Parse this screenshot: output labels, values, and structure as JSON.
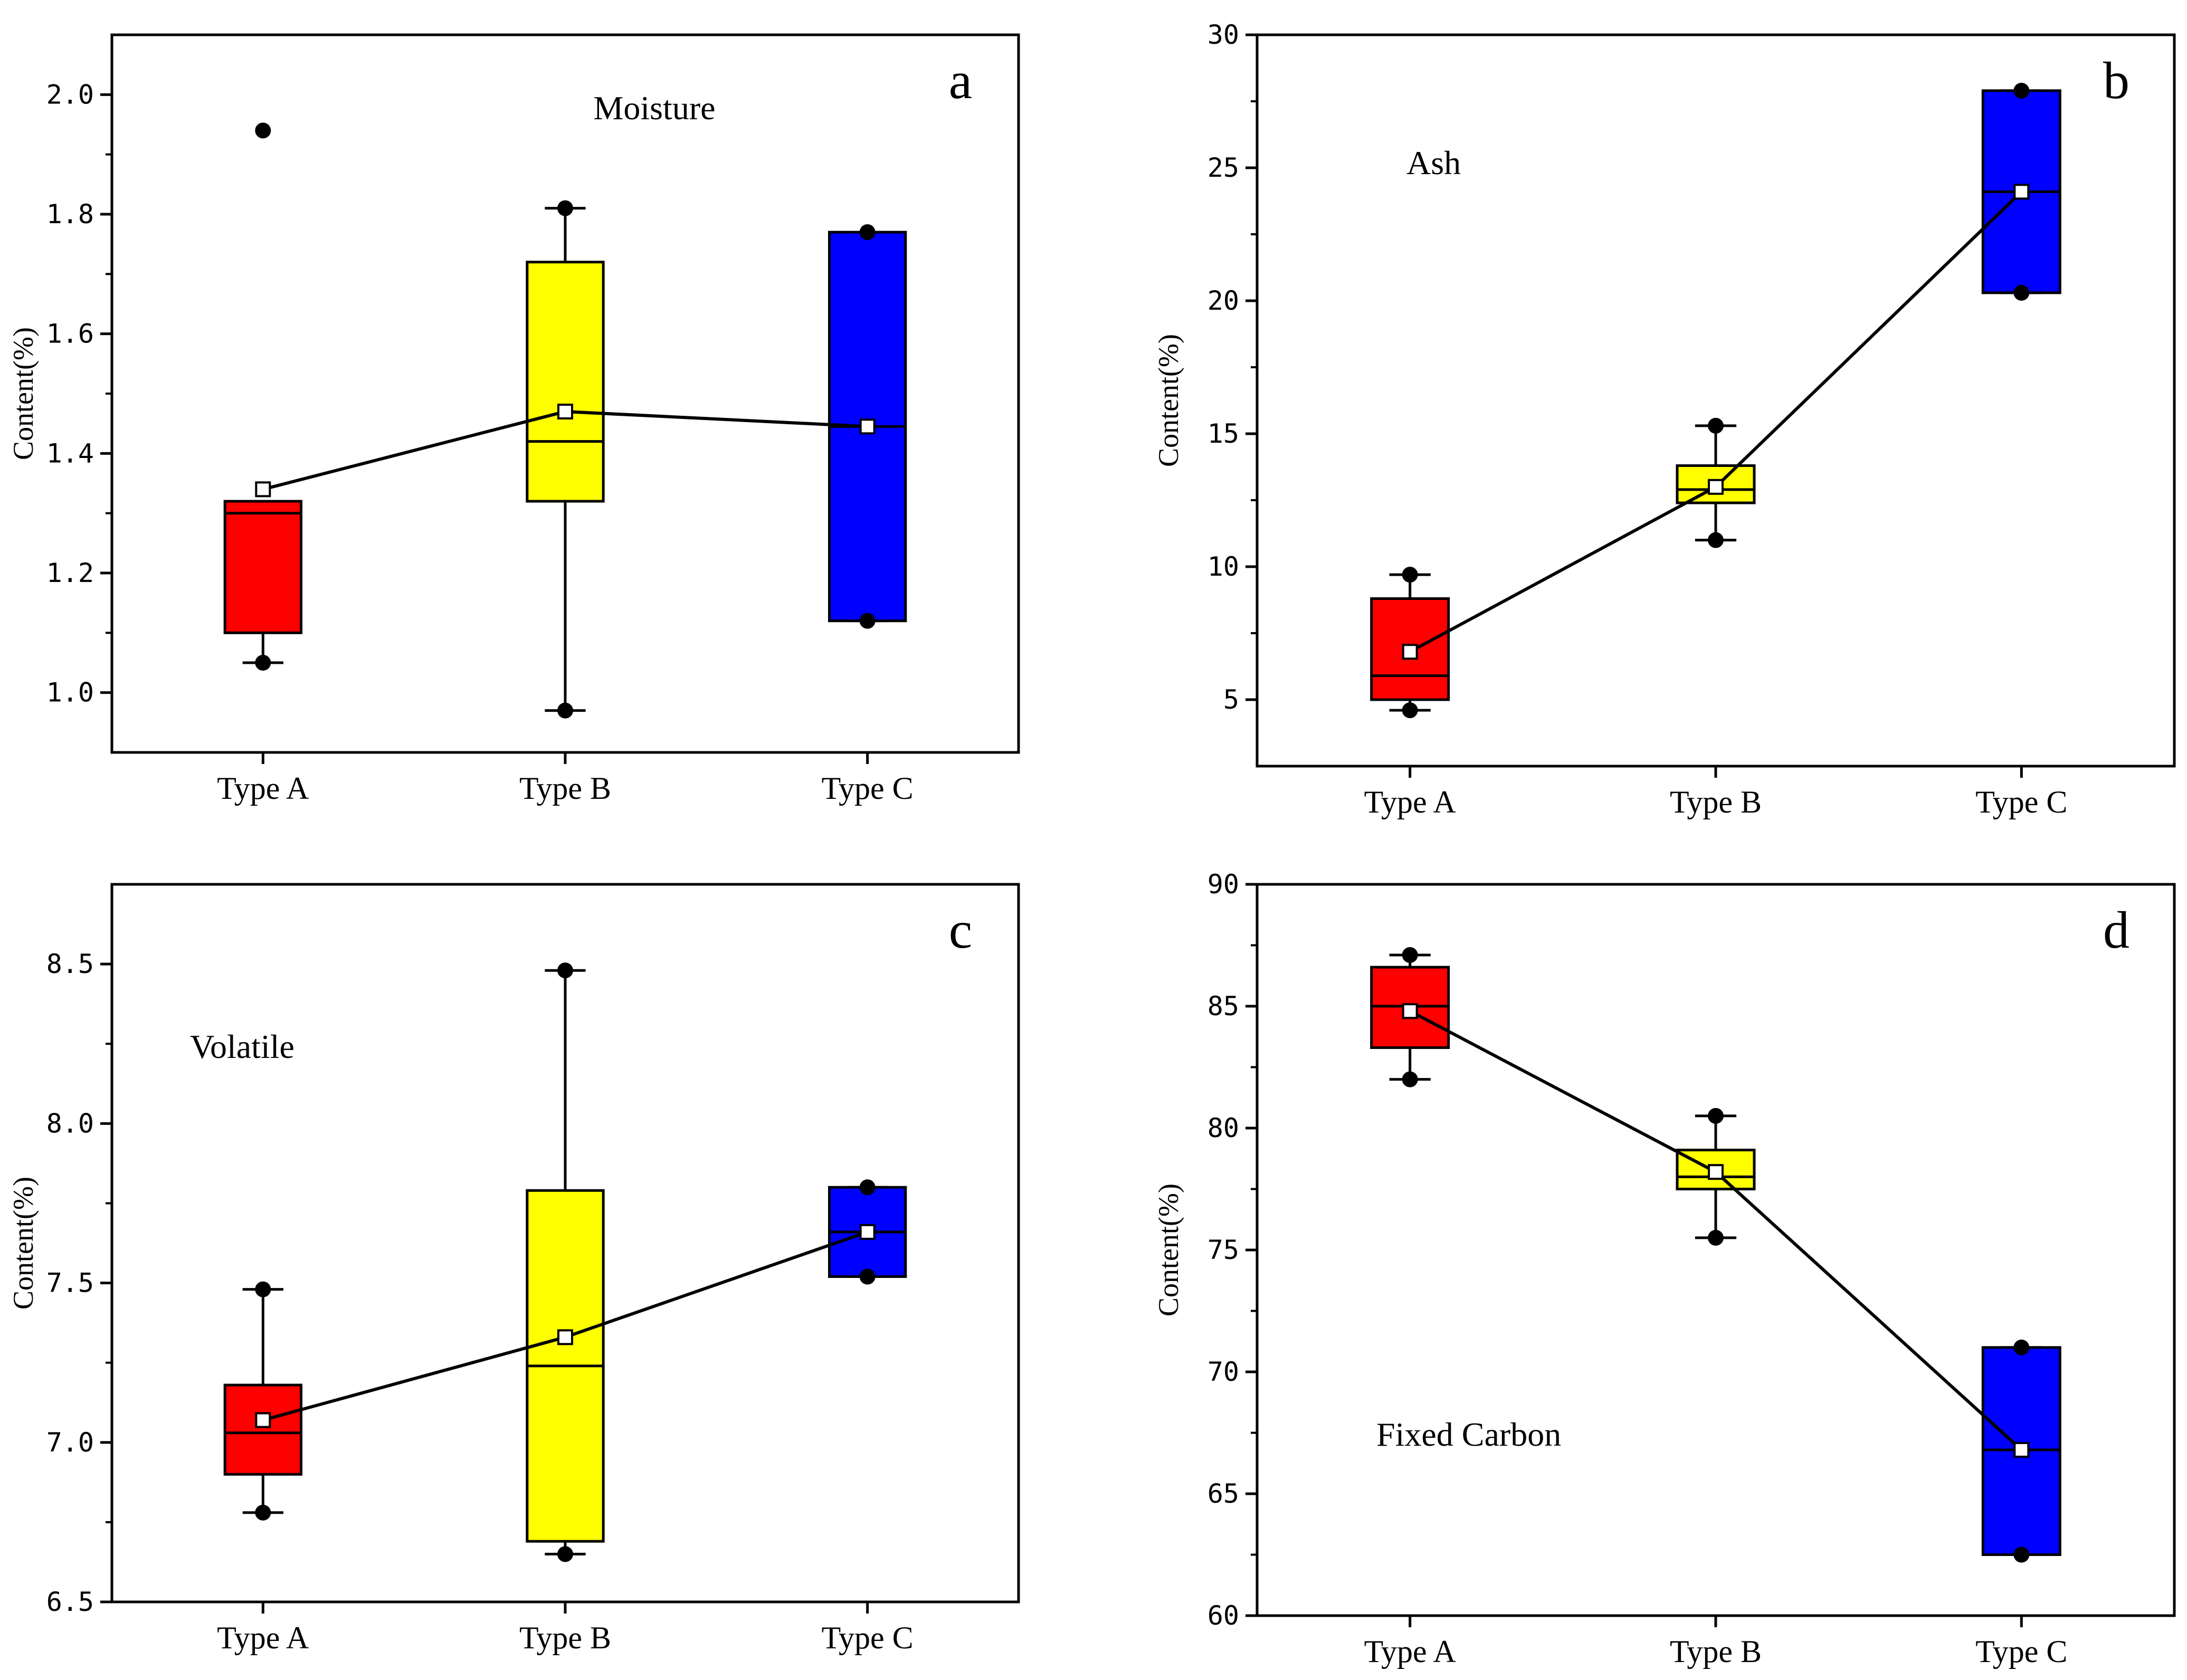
{
  "figure": {
    "colors": {
      "type_a": "#ff0000",
      "type_b": "#ffff00",
      "type_c": "#0000ff",
      "line": "#000000"
    }
  },
  "chart_data": [
    {
      "type": "box",
      "panel_letter": "a",
      "title": "Moisture",
      "ylabel": "Content(%)",
      "ylim": [
        0.9,
        2.1
      ],
      "yticks": [
        1.0,
        1.2,
        1.4,
        1.6,
        1.8,
        2.0
      ],
      "ytick_labels": [
        "1.0",
        "1.2",
        "1.4",
        "1.6",
        "1.8",
        "2.0"
      ],
      "categories": [
        "Type A",
        "Type B",
        "Type C"
      ],
      "boxes": [
        {
          "category": "Type A",
          "whisker_low": 1.05,
          "q1": 1.1,
          "median": 1.3,
          "q3": 1.32,
          "whisker_high": 1.32,
          "mean": 1.34,
          "points": [
            1.05,
            1.94
          ]
        },
        {
          "category": "Type B",
          "whisker_low": 0.97,
          "q1": 1.32,
          "median": 1.42,
          "q3": 1.72,
          "whisker_high": 1.81,
          "mean": 1.47,
          "points": [
            0.97,
            1.81
          ]
        },
        {
          "category": "Type C",
          "whisker_low": 1.12,
          "q1": 1.12,
          "median": 1.445,
          "q3": 1.77,
          "whisker_high": 1.77,
          "mean": 1.445,
          "points": [
            1.12,
            1.77
          ]
        }
      ]
    },
    {
      "type": "box",
      "panel_letter": "b",
      "title": "Ash",
      "ylabel": "Content(%)",
      "ylim": [
        2.5,
        30
      ],
      "yticks": [
        5,
        10,
        15,
        20,
        25,
        30
      ],
      "ytick_labels": [
        "5",
        "10",
        "15",
        "20",
        "25",
        "30"
      ],
      "categories": [
        "Type A",
        "Type B",
        "Type C"
      ],
      "boxes": [
        {
          "category": "Type A",
          "whisker_low": 4.6,
          "q1": 5.0,
          "median": 5.9,
          "q3": 8.8,
          "whisker_high": 9.7,
          "mean": 6.8,
          "points": [
            4.6,
            9.7
          ]
        },
        {
          "category": "Type B",
          "whisker_low": 11.0,
          "q1": 12.4,
          "median": 12.9,
          "q3": 13.8,
          "whisker_high": 15.3,
          "mean": 13.0,
          "points": [
            11.0,
            15.3
          ]
        },
        {
          "category": "Type C",
          "whisker_low": 20.3,
          "q1": 20.3,
          "median": 24.1,
          "q3": 27.9,
          "whisker_high": 27.9,
          "mean": 24.1,
          "points": [
            20.3,
            27.9
          ]
        }
      ]
    },
    {
      "type": "box",
      "panel_letter": "c",
      "title": "Volatile",
      "ylabel": "Content(%)",
      "ylim": [
        6.5,
        8.75
      ],
      "yticks": [
        6.5,
        7.0,
        7.5,
        8.0,
        8.5
      ],
      "ytick_labels": [
        "6.5",
        "7.0",
        "7.5",
        "8.0",
        "8.5"
      ],
      "categories": [
        "Type A",
        "Type B",
        "Type C"
      ],
      "boxes": [
        {
          "category": "Type A",
          "whisker_low": 6.78,
          "q1": 6.9,
          "median": 7.03,
          "q3": 7.18,
          "whisker_high": 7.48,
          "mean": 7.07,
          "points": [
            6.78,
            7.48
          ]
        },
        {
          "category": "Type B",
          "whisker_low": 6.65,
          "q1": 6.69,
          "median": 7.24,
          "q3": 7.79,
          "whisker_high": 8.48,
          "mean": 7.33,
          "points": [
            6.65,
            8.48
          ]
        },
        {
          "category": "Type C",
          "whisker_low": 7.52,
          "q1": 7.52,
          "median": 7.66,
          "q3": 7.8,
          "whisker_high": 7.8,
          "mean": 7.66,
          "points": [
            7.52,
            7.8
          ]
        }
      ]
    },
    {
      "type": "box",
      "panel_letter": "d",
      "title": "Fixed Carbon",
      "ylabel": "Content(%)",
      "ylim": [
        60,
        90
      ],
      "yticks": [
        60,
        65,
        70,
        75,
        80,
        85,
        90
      ],
      "ytick_labels": [
        "60",
        "65",
        "70",
        "75",
        "80",
        "85",
        "90"
      ],
      "categories": [
        "Type A",
        "Type B",
        "Type C"
      ],
      "boxes": [
        {
          "category": "Type A",
          "whisker_low": 82.0,
          "q1": 83.3,
          "median": 85.0,
          "q3": 86.6,
          "whisker_high": 87.1,
          "mean": 84.8,
          "points": [
            82.0,
            87.1
          ]
        },
        {
          "category": "Type B",
          "whisker_low": 75.5,
          "q1": 77.5,
          "median": 78.0,
          "q3": 79.1,
          "whisker_high": 80.5,
          "mean": 78.2,
          "points": [
            75.5,
            80.5
          ]
        },
        {
          "category": "Type C",
          "whisker_low": 62.5,
          "q1": 62.5,
          "median": 66.8,
          "q3": 71.0,
          "whisker_high": 71.0,
          "mean": 66.8,
          "points": [
            62.5,
            71.0
          ]
        }
      ]
    }
  ]
}
